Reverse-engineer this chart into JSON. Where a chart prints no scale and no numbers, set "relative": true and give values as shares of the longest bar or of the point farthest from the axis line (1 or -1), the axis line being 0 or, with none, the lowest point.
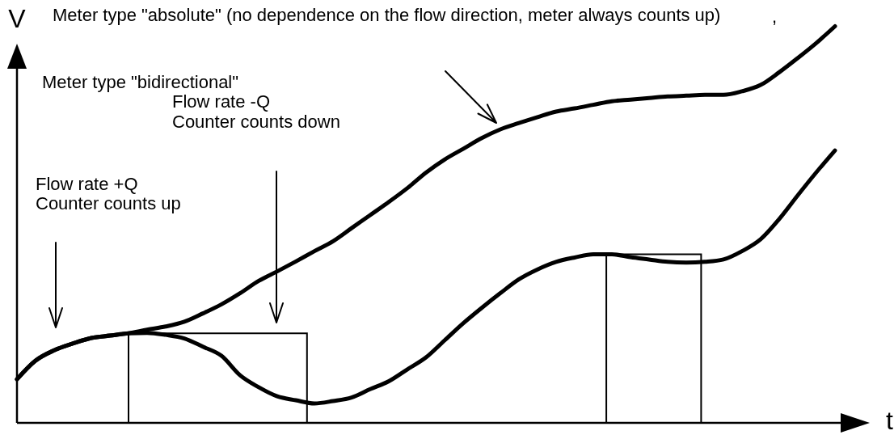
{
  "chart_data": {
    "type": "line",
    "relative": true,
    "categories": [
      null,
      null,
      null,
      null,
      null,
      null,
      null,
      null,
      null,
      null,
      null,
      null,
      null,
      null,
      null,
      null,
      null,
      null,
      null,
      null,
      null,
      null,
      null,
      null,
      null,
      null,
      null,
      null,
      null,
      null,
      null,
      null,
      null,
      null,
      null,
      null,
      null,
      null,
      null,
      null,
      null,
      null,
      null,
      null,
      null
    ],
    "series": [
      {
        "color": "#000000",
        "values": [
          0.11,
          0.157,
          0.183,
          0.2,
          0.214,
          0.22,
          0.226,
          0.227,
          0.222,
          0.213,
          0.192,
          0.169,
          0.12,
          0.09,
          0.067,
          0.057,
          0.049,
          0.055,
          0.064,
          0.085,
          0.105,
          0.135,
          0.165,
          0.208,
          0.251,
          0.29,
          0.327,
          0.362,
          0.387,
          0.406,
          0.417,
          0.425,
          0.425,
          0.418,
          0.412,
          0.406,
          0.404,
          0.406,
          0.412,
          0.433,
          0.463,
          0.514,
          0.574,
          0.632,
          0.687
        ]
      },
      {
        "color": "#000000",
        "values": [
          0.11,
          0.157,
          0.183,
          0.2,
          0.214,
          0.22,
          0.226,
          0.235,
          0.243,
          0.255,
          0.276,
          0.299,
          0.327,
          0.358,
          0.382,
          0.407,
          0.433,
          0.458,
          0.491,
          0.524,
          0.557,
          0.592,
          0.631,
          0.664,
          0.691,
          0.718,
          0.74,
          0.756,
          0.771,
          0.785,
          0.793,
          0.802,
          0.811,
          0.815,
          0.819,
          0.823,
          0.825,
          0.827,
          0.827,
          0.836,
          0.852,
          0.884,
          0.92,
          0.958,
          1.0
        ]
      }
    ],
    "xlabel": "t",
    "ylabel": "V",
    "annotations": [
      "Meter type \"absolute\" (no dependence on the flow direction, meter always counts up)",
      ",",
      "Meter type \"bidirectional\"",
      "Flow rate -Q",
      "Counter counts down",
      "Flow rate +Q",
      "Counter counts up"
    ]
  }
}
